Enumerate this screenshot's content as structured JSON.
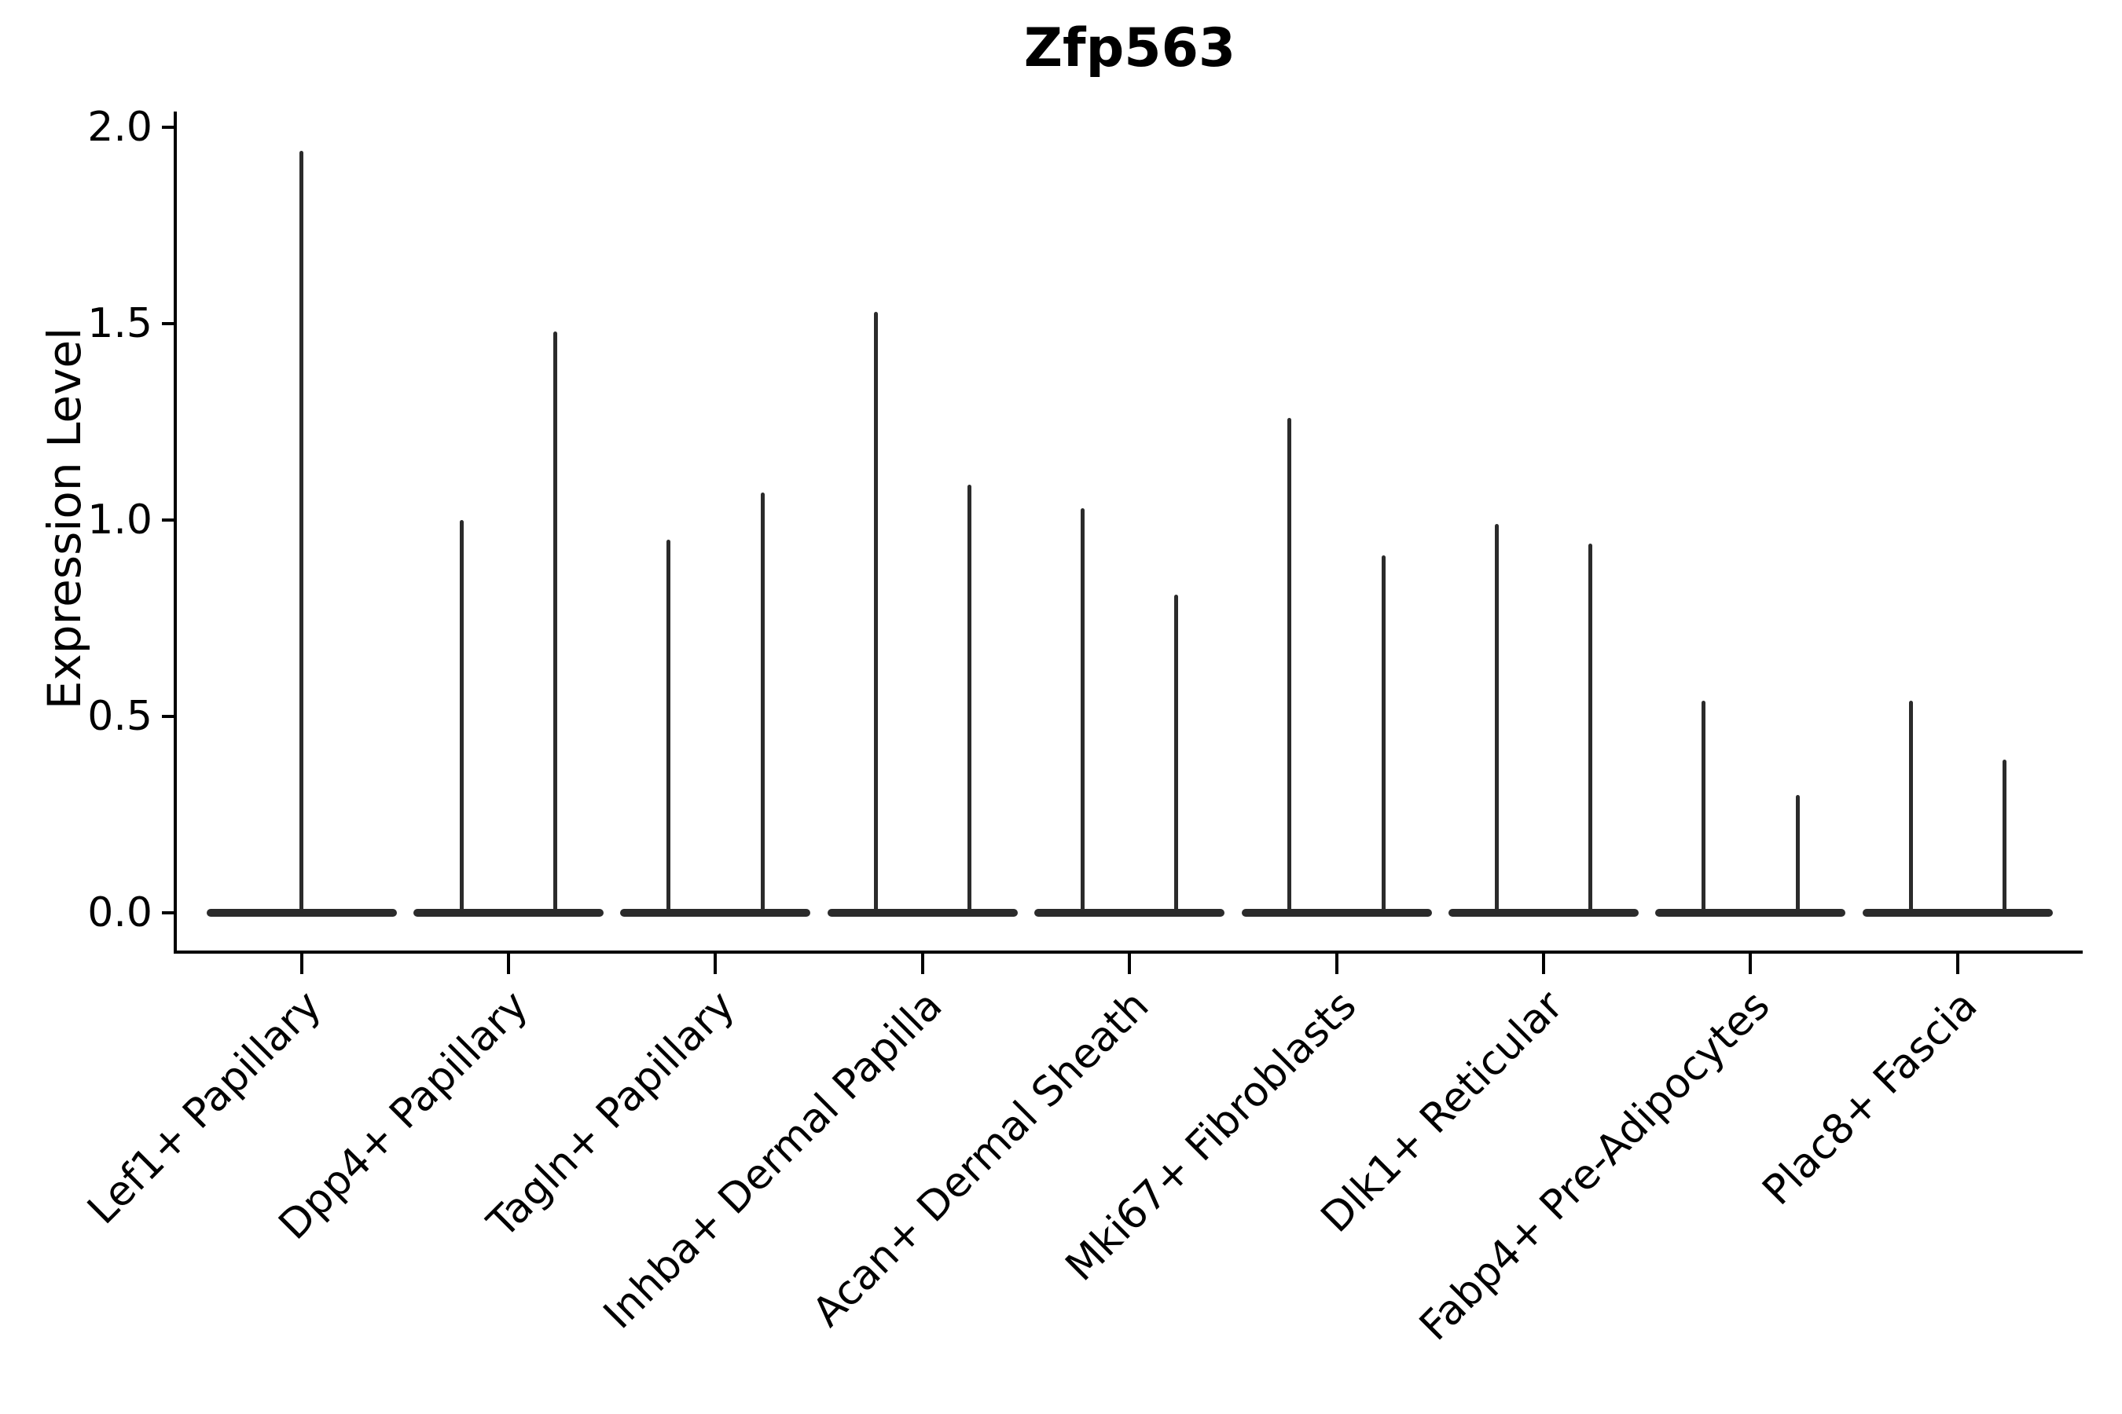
{
  "title": "Zfp563",
  "axes": {
    "ylabel": "Expression Level",
    "ytick_labels": [
      "0.0",
      "0.5",
      "1.0",
      "1.5",
      "2.0"
    ]
  },
  "colors": {
    "violin": "#2b2b2b",
    "axis": "#000000",
    "text": "#000000",
    "background": "#ffffff"
  },
  "chart_data": {
    "type": "violin",
    "title": "Zfp563",
    "ylabel": "Expression Level",
    "xlabel": "",
    "ylim": [
      0.0,
      2.0
    ],
    "yticks": [
      0.0,
      0.5,
      1.0,
      1.5,
      2.0
    ],
    "grid": false,
    "legend": false,
    "categories": [
      "Lef1+ Papillary",
      "Dpp4+ Papillary",
      "Tagln+ Papillary",
      "Inhba+ Dermal Papilla",
      "Acan+ Dermal Sheath",
      "Mki67+ Fibroblasts",
      "Dlk1+ Reticular",
      "Fabp4+ Pre-Adipocytes",
      "Plac8+ Fascia"
    ],
    "groups": [
      {
        "category": "Lef1+ Papillary",
        "violin_maxima": [
          1.94
        ]
      },
      {
        "category": "Dpp4+ Papillary",
        "violin_maxima": [
          1.0,
          1.48
        ]
      },
      {
        "category": "Tagln+ Papillary",
        "violin_maxima": [
          0.95,
          1.07
        ]
      },
      {
        "category": "Inhba+ Dermal Papilla",
        "violin_maxima": [
          1.53,
          1.09
        ]
      },
      {
        "category": "Acan+ Dermal Sheath",
        "violin_maxima": [
          1.03,
          0.81
        ]
      },
      {
        "category": "Mki67+ Fibroblasts",
        "violin_maxima": [
          1.26,
          0.91
        ]
      },
      {
        "category": "Dlk1+ Reticular",
        "violin_maxima": [
          0.99,
          0.94
        ]
      },
      {
        "category": "Fabp4+ Pre-Adipocytes",
        "violin_maxima": [
          0.54,
          0.3
        ]
      },
      {
        "category": "Plac8+ Fascia",
        "violin_maxima": [
          0.54,
          0.39
        ]
      }
    ],
    "violin_baseline_value": 0.0
  }
}
